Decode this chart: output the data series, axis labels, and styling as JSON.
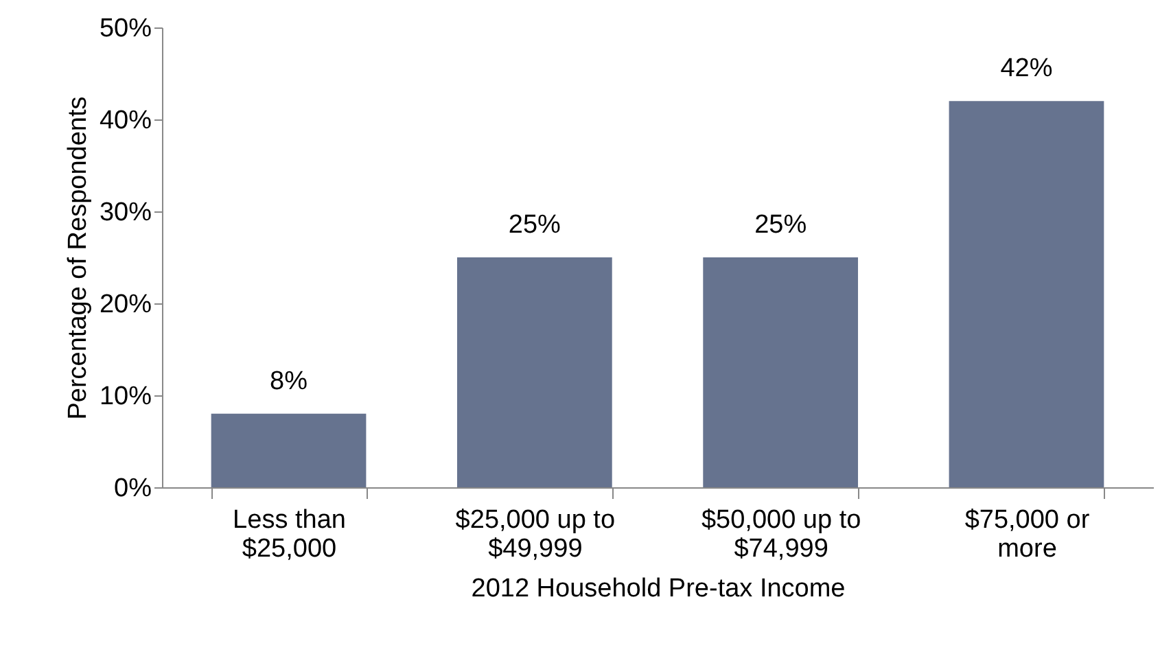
{
  "chart_data": {
    "type": "bar",
    "xlabel": "2012 Household Pre-tax Income",
    "ylabel": "Percentage of Respondents",
    "categories": [
      "Less than $25,000",
      "$25,000 up to $49,999",
      "$50,000 up to $74,999",
      "$75,000 or more"
    ],
    "values": [
      8,
      25,
      25,
      42
    ],
    "value_labels": [
      "8%",
      "25%",
      "25%",
      "42%"
    ],
    "color": "#66738f",
    "ylim": [
      0,
      50
    ],
    "yticks": [
      {
        "value": 0,
        "label": "0%"
      },
      {
        "value": 10,
        "label": "10%"
      },
      {
        "value": 20,
        "label": "20%"
      },
      {
        "value": 30,
        "label": "30%"
      },
      {
        "value": 40,
        "label": "40%"
      },
      {
        "value": 50,
        "label": "50%"
      }
    ],
    "grid": false
  }
}
